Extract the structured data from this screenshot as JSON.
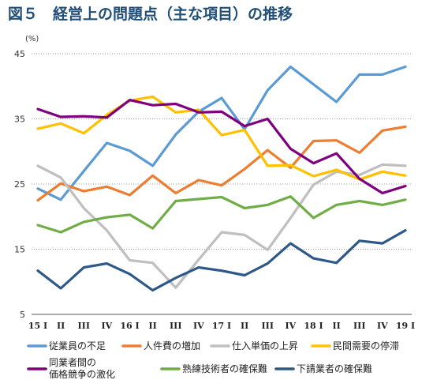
{
  "title": "図５　経営上の問題点（主な項目）の推移",
  "chart_data": {
    "type": "line",
    "unit": "(%)",
    "ylim": [
      5,
      45
    ],
    "yticks": [
      5,
      15,
      25,
      35,
      45
    ],
    "grid": "dotted horizontal",
    "categories": [
      "15 I",
      "II",
      "III",
      "IV",
      "16 I",
      "II",
      "III",
      "IV",
      "17 I",
      "II",
      "III",
      "IV",
      "18 I",
      "II",
      "III",
      "IV",
      "19 I"
    ],
    "series": [
      {
        "name": "従業員の不足",
        "color": "#5b9bd5",
        "values": [
          24.3,
          22.6,
          27.0,
          31.3,
          30.1,
          27.8,
          32.6,
          36.1,
          38.2,
          33.4,
          39.4,
          43.0,
          40.3,
          37.6,
          41.8,
          41.8,
          43.0
        ]
      },
      {
        "name": "人件費の増加",
        "color": "#ed7d31",
        "values": [
          22.5,
          25.1,
          23.9,
          24.6,
          23.3,
          26.3,
          23.6,
          25.6,
          24.8,
          27.3,
          30.2,
          27.5,
          31.6,
          31.7,
          29.8,
          33.2,
          33.8
        ]
      },
      {
        "name": "仕入単価の上昇",
        "color": "#bfbfbf",
        "values": [
          27.8,
          26.0,
          21.3,
          17.9,
          13.3,
          12.9,
          9.1,
          13.4,
          17.6,
          17.2,
          14.9,
          19.8,
          24.9,
          26.9,
          26.4,
          28.0,
          27.8
        ]
      },
      {
        "name": "民間需要の停滞",
        "color": "#ffc000",
        "values": [
          33.5,
          34.3,
          32.8,
          35.6,
          37.8,
          38.4,
          36.0,
          36.4,
          32.5,
          33.3,
          27.8,
          27.9,
          26.2,
          27.2,
          25.7,
          26.9,
          26.3
        ]
      },
      {
        "name": "同業者間の価格競争の激化",
        "color": "#7f007f",
        "values": [
          36.5,
          35.3,
          35.4,
          35.2,
          37.9,
          37.1,
          37.3,
          36.0,
          36.1,
          33.9,
          35.0,
          30.4,
          28.2,
          29.7,
          25.8,
          23.6,
          24.7
        ]
      },
      {
        "name": "熟練技術者の確保難",
        "color": "#70ad47",
        "values": [
          18.7,
          17.6,
          19.2,
          19.9,
          20.3,
          18.2,
          22.4,
          22.7,
          23.0,
          21.3,
          21.8,
          23.1,
          19.8,
          21.8,
          22.4,
          21.8,
          22.6
        ]
      },
      {
        "name": "下請業者の確保難",
        "color": "#2e5887",
        "values": [
          11.7,
          9.0,
          12.2,
          12.8,
          11.2,
          8.7,
          10.6,
          12.2,
          11.7,
          11.0,
          12.8,
          15.9,
          13.6,
          12.9,
          16.3,
          15.9,
          17.9
        ]
      }
    ],
    "legend": {
      "placement": "bottom",
      "rows": [
        [
          {
            "label": "従業員の不足",
            "color": "#5b9bd5"
          },
          {
            "label": "人件費の増加",
            "color": "#ed7d31"
          },
          {
            "label": "仕入単価の上昇",
            "color": "#bfbfbf"
          },
          {
            "label": "民間需要の停滞",
            "color": "#ffc000"
          }
        ],
        [
          {
            "label_lines": [
              "同業者間の",
              "価格競争の激化"
            ],
            "color": "#7f007f"
          },
          {
            "label": "熟練技術者の確保難",
            "color": "#70ad47"
          },
          {
            "label": "下請業者の確保難",
            "color": "#2e5887"
          }
        ]
      ]
    }
  }
}
